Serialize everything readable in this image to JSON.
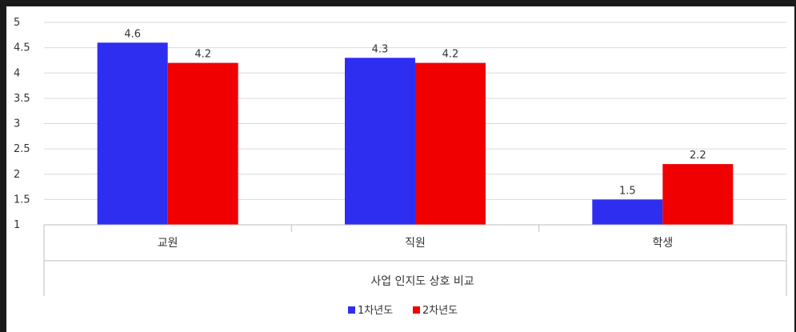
{
  "chart_data": {
    "type": "bar",
    "categories": [
      "교원",
      "직원",
      "학생"
    ],
    "series": [
      {
        "name": "1차년도",
        "values": [
          4.6,
          4.3,
          1.5
        ],
        "color": "#2E2EF0"
      },
      {
        "name": "2차년도",
        "values": [
          4.2,
          4.2,
          2.2
        ],
        "color": "#F00000"
      }
    ],
    "xlabel": "사업 인지도 상호 비교",
    "ylabel": "",
    "ylim": [
      1,
      5
    ],
    "yticks": [
      "1",
      "1.5",
      "2",
      "2.5",
      "3",
      "3.5",
      "4",
      "4.5",
      "5"
    ],
    "data_labels": [
      [
        "4.6",
        "4.3",
        "1.5"
      ],
      [
        "4.2",
        "4.2",
        "2.2"
      ]
    ],
    "grid": true,
    "legend_position": "bottom"
  }
}
